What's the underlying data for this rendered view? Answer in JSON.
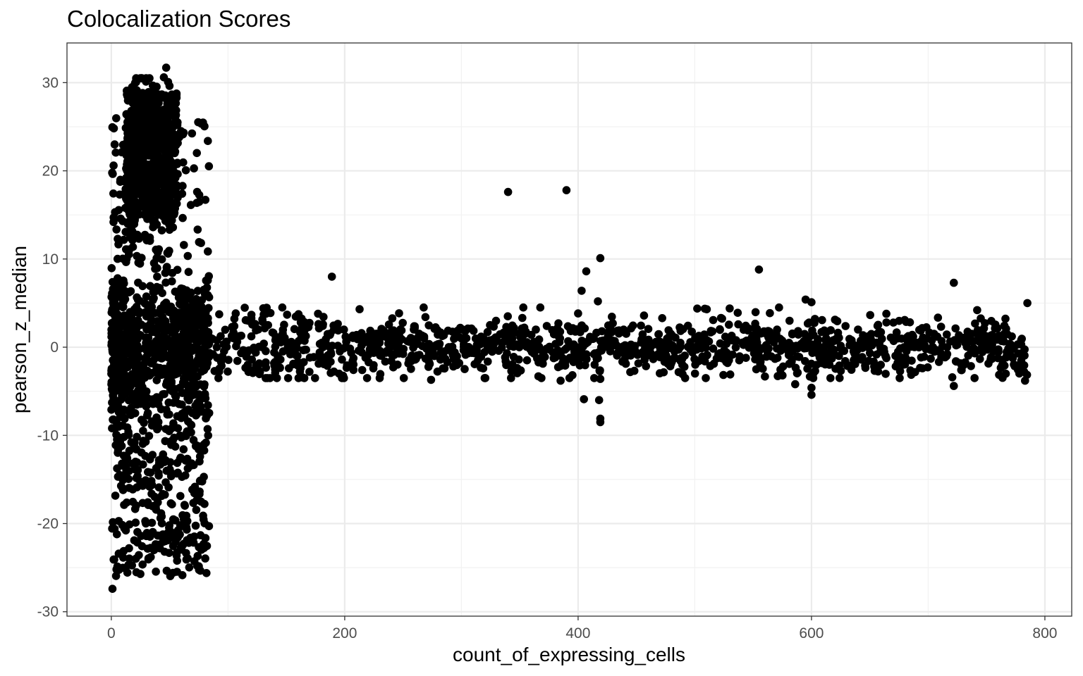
{
  "chart_data": {
    "type": "scatter",
    "title": "Colocalization Scores",
    "xlabel": "count_of_expressing_cells",
    "ylabel": "pearson_z_median",
    "xlim": [
      -38,
      823
    ],
    "ylim": [
      -30.5,
      34.5
    ],
    "x_ticks": [
      0,
      200,
      400,
      600,
      800
    ],
    "y_ticks": [
      -30,
      -20,
      -10,
      0,
      10,
      20,
      30
    ],
    "x_tick_labels": [
      "0",
      "200",
      "400",
      "600",
      "800"
    ],
    "y_tick_labels": [
      "-30",
      "-20",
      "-10",
      "0",
      "10",
      "20",
      "30"
    ],
    "grid": true,
    "legend": "none",
    "point_color": "#000000",
    "series": [
      {
        "points_description": "Distribution approximated from the plot: dense cloud for x in 0-85 spanning roughly -27 to 32, narrowing to about -5 to 5 for larger x up to ~785.",
        "highlighted_points": [
          [
            1,
            -27.4
          ],
          [
            47,
            31.7
          ],
          [
            45,
            30.6
          ],
          [
            390,
            17.8
          ],
          [
            340,
            17.6
          ],
          [
            419,
            10.1
          ],
          [
            555,
            8.8
          ],
          [
            407,
            8.6
          ],
          [
            189,
            8.0
          ],
          [
            403,
            6.4
          ],
          [
            722,
            7.3
          ],
          [
            595,
            5.4
          ],
          [
            600,
            5.1
          ],
          [
            417,
            5.2
          ],
          [
            785,
            5.0
          ],
          [
            419,
            -3.6
          ],
          [
            418,
            -6.0
          ],
          [
            405,
            -5.9
          ],
          [
            419,
            -8.1
          ],
          [
            419,
            -8.5
          ],
          [
            600,
            -4.6
          ],
          [
            600,
            -5.4
          ],
          [
            586,
            -4.2
          ],
          [
            722,
            -4.4
          ],
          [
            274,
            -3.7
          ],
          [
            385,
            -3.8
          ],
          [
            366,
            -3.3
          ],
          [
            611,
            1.9
          ],
          [
            742,
            4.2
          ],
          [
            783,
            -3.8
          ]
        ]
      }
    ]
  }
}
